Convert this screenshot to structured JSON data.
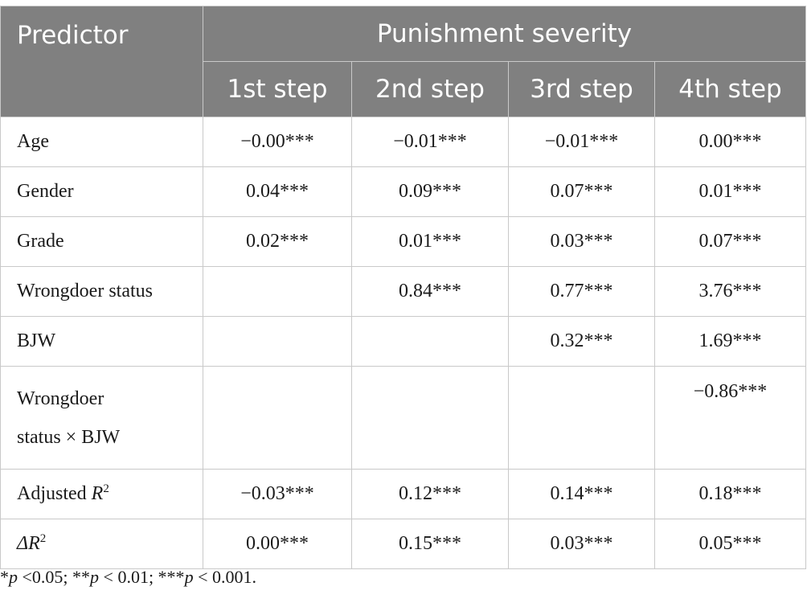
{
  "header": {
    "predictor": "Predictor",
    "group": "Punishment severity",
    "steps": [
      "1st step",
      "2nd step",
      "3rd step",
      "4th step"
    ]
  },
  "rows": [
    {
      "label": "Age",
      "values": [
        "−0.00***",
        "−0.01***",
        "−0.01***",
        "0.00***"
      ]
    },
    {
      "label": "Gender",
      "values": [
        "0.04***",
        "0.09***",
        "0.07***",
        "0.01***"
      ]
    },
    {
      "label": "Grade",
      "values": [
        "0.02***",
        "0.01***",
        "0.03***",
        "0.07***"
      ]
    },
    {
      "label": "Wrongdoer status",
      "values": [
        "",
        "0.84***",
        "0.77***",
        "3.76***"
      ]
    },
    {
      "label": "BJW",
      "values": [
        "",
        "",
        "0.32***",
        "1.69***"
      ]
    },
    {
      "label_line1": "Wrongdoer",
      "label_line2": "status × BJW",
      "values": [
        "",
        "",
        "",
        "−0.86***"
      ]
    },
    {
      "label_text": "Adjusted ",
      "label_italic": "R",
      "label_sup": "2",
      "values": [
        "−0.03***",
        "0.12***",
        "0.14***",
        "0.18***"
      ]
    },
    {
      "label_italic": "ΔR",
      "label_sup": "2",
      "values": [
        "0.00***",
        "0.15***",
        "0.03***",
        "0.05***"
      ]
    }
  ],
  "footnote": {
    "s1": "*",
    "p1": "p",
    "t1": " <0.05; **",
    "p2": "p",
    "t2": " < 0.01; ***",
    "p3": "p",
    "t3": " < 0.001."
  }
}
